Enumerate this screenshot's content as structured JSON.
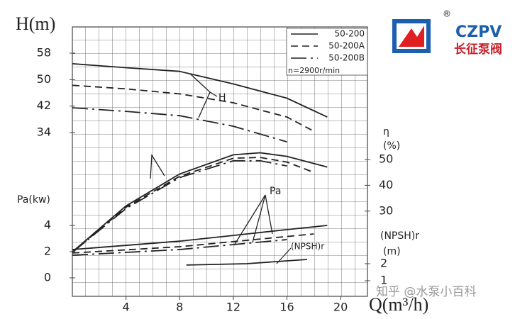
{
  "chart_data": [
    {
      "type": "line",
      "axis_label": "H(m)",
      "x_label": "Q(m³/h)",
      "annotation": "H",
      "xlim": [
        0,
        22
      ],
      "xticks": [
        4,
        8,
        12,
        16,
        20
      ],
      "ylim": [
        34,
        58
      ],
      "yticks": [
        34,
        42,
        50,
        58
      ],
      "legend_note": "n=2900r/min",
      "series": [
        {
          "name": "50-200",
          "color": "#222222",
          "dash": "none",
          "x": [
            0,
            4,
            8,
            12,
            16,
            19
          ],
          "values": [
            54.8,
            53.6,
            52.5,
            48.7,
            44.4,
            38.7
          ]
        },
        {
          "name": "50-200A",
          "color": "#222222",
          "dash": "10,6",
          "x": [
            0,
            4,
            8,
            12,
            16,
            18
          ],
          "values": [
            48.3,
            47.2,
            45.7,
            43,
            38.7,
            34.4
          ]
        },
        {
          "name": "50-200B",
          "color": "#222222",
          "dash": "22,6,3,6",
          "x": [
            0,
            4,
            8,
            12,
            16
          ],
          "values": [
            41.5,
            40.4,
            39.1,
            35.9,
            31.2
          ]
        }
      ]
    },
    {
      "type": "line",
      "axis_label": "η",
      "axis_unit": "(%)",
      "xlim": [
        0,
        22
      ],
      "ylim": [
        0,
        50
      ],
      "yticks": [
        30,
        40,
        50
      ],
      "series": [
        {
          "color": "#222222",
          "dash": "none",
          "x": [
            0,
            4,
            8,
            12,
            14,
            16,
            19
          ],
          "values": [
            14.2,
            32,
            44.4,
            51.8,
            52.6,
            51.2,
            47.1
          ]
        },
        {
          "color": "#222222",
          "dash": "10,6",
          "x": [
            0,
            4,
            8,
            12,
            14,
            16,
            18
          ],
          "values": [
            14,
            31.5,
            43.5,
            50.5,
            50.8,
            49,
            45
          ]
        },
        {
          "color": "#222222",
          "dash": "22,6,3,6",
          "x": [
            0,
            4,
            8,
            12,
            14,
            16
          ],
          "values": [
            14,
            31,
            43,
            49.5,
            49.5,
            47.5
          ]
        }
      ]
    },
    {
      "type": "line",
      "axis_label": "Pa(kw)",
      "annotation": "Pa",
      "xlim": [
        0,
        22
      ],
      "ylim": [
        0,
        4
      ],
      "yticks": [
        0,
        2,
        4
      ],
      "series": [
        {
          "color": "#222222",
          "dash": "none",
          "x": [
            0,
            8,
            12,
            16,
            19
          ],
          "values": [
            2.16,
            2.8,
            3.24,
            3.68,
            4.0
          ]
        },
        {
          "color": "#222222",
          "dash": "10,6",
          "x": [
            0,
            8,
            18
          ],
          "values": [
            1.9,
            2.38,
            3.35
          ]
        },
        {
          "color": "#222222",
          "dash": "22,6,3,6",
          "x": [
            0,
            8,
            16
          ],
          "values": [
            1.73,
            2.16,
            2.92
          ]
        }
      ]
    },
    {
      "type": "line",
      "axis_label": "(NPSH)r",
      "axis_unit": "(m)",
      "annotation": "(NPSH)r",
      "xlim": [
        0,
        22
      ],
      "ylim": [
        1,
        2
      ],
      "yticks": [
        1,
        2
      ],
      "series": [
        {
          "color": "#222222",
          "dash": "none",
          "x": [
            8.5,
            13,
            17.5
          ],
          "values": [
            1.92,
            2.0,
            2.25
          ]
        }
      ]
    }
  ],
  "logo": {
    "mark": "®",
    "text": "CZPV",
    "name": "长征泵阀"
  },
  "watermark": "知乎 @水泵小百科"
}
